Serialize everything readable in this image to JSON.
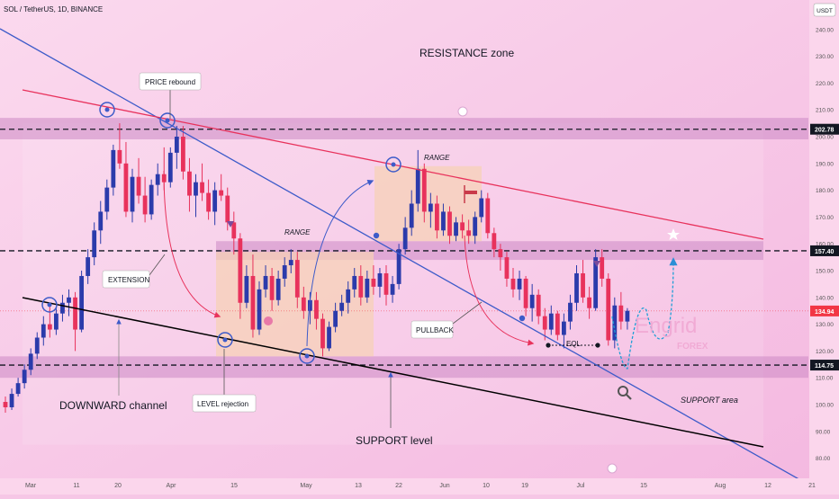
{
  "header": {
    "title": "SOL / TetherUS, 1D, BINANCE"
  },
  "y_axis": {
    "unit": "USDT",
    "ticks": [
      80,
      90,
      100,
      110,
      120,
      130,
      140,
      150,
      160,
      170,
      180,
      190,
      200,
      210,
      220,
      230,
      240
    ],
    "tick_labels": [
      "80.00",
      "90.00",
      "100.00",
      "110.00",
      "120.00",
      "130.00",
      "140.00",
      "150.00",
      "160.00",
      "170.00",
      "180.00",
      "190.00",
      "200.00",
      "210.00",
      "220.00",
      "230.00",
      "240.00"
    ],
    "price_badges": [
      {
        "value": 202.78,
        "label": "202.78",
        "color": "#131722"
      },
      {
        "value": 157.4,
        "label": "157.40",
        "color": "#131722"
      },
      {
        "value": 134.94,
        "label": "134.94",
        "color": "#f23645"
      },
      {
        "value": 114.75,
        "label": "114.75",
        "color": "#131722"
      }
    ]
  },
  "x_axis": {
    "labels": [
      "Mar",
      "11",
      "20",
      "Apr",
      "15",
      "May",
      "13",
      "22",
      "Jun",
      "10",
      "19",
      "Jul",
      "15",
      "Aug",
      "12",
      "21"
    ]
  },
  "annotations": {
    "resistance_zone": "RESISTANCE zone",
    "price_rebound": "PRICE rebound",
    "range_1": "RANGE",
    "range_2": "RANGE",
    "extension": "EXTENSION",
    "pullback": "PULLBACK",
    "eql": "EQL",
    "downward_channel": "DOWNWARD channel",
    "level_rejection": "LEVEL rejection",
    "support_level": "SUPPORT level",
    "support_area": "SUPPORT area"
  },
  "watermark": {
    "line1": "Engrid",
    "line2": "FOREX"
  },
  "colors": {
    "up": "#2b3bab",
    "down": "#e8325c",
    "zone": "#cc88c4",
    "trendline_blue": "#3d5bc9",
    "trendline_red": "#e8325c",
    "support_line": "#000000",
    "range_box": "#f7d2b4"
  },
  "chart_data": {
    "type": "candlestick",
    "symbol": "SOL / TetherUS",
    "timeframe": "1D",
    "exchange": "BINANCE",
    "unit": "USDT",
    "ylim": [
      75,
      245
    ],
    "horizontal_levels": [
      202.78,
      157.4,
      114.75
    ],
    "last_price": 134.94,
    "ohlc": [
      [
        101,
        103,
        97,
        99
      ],
      [
        99,
        106,
        98,
        104
      ],
      [
        104,
        110,
        103,
        108
      ],
      [
        108,
        115,
        106,
        113
      ],
      [
        113,
        121,
        111,
        119
      ],
      [
        119,
        127,
        117,
        125
      ],
      [
        125,
        133,
        122,
        130
      ],
      [
        130,
        137,
        125,
        128
      ],
      [
        128,
        136,
        126,
        134
      ],
      [
        134,
        141,
        131,
        138
      ],
      [
        138,
        143,
        133,
        140
      ],
      [
        140,
        142,
        120,
        128
      ],
      [
        128,
        150,
        127,
        148
      ],
      [
        148,
        158,
        145,
        155
      ],
      [
        155,
        168,
        152,
        165
      ],
      [
        165,
        176,
        160,
        172
      ],
      [
        172,
        184,
        169,
        181
      ],
      [
        181,
        197,
        178,
        195
      ],
      [
        195,
        205,
        188,
        190
      ],
      [
        190,
        198,
        170,
        172
      ],
      [
        172,
        188,
        168,
        185
      ],
      [
        185,
        192,
        175,
        178
      ],
      [
        178,
        185,
        168,
        171
      ],
      [
        171,
        184,
        169,
        182
      ],
      [
        182,
        190,
        178,
        186
      ],
      [
        186,
        196,
        180,
        183
      ],
      [
        183,
        196,
        181,
        194
      ],
      [
        194,
        204,
        188,
        200
      ],
      [
        200,
        204,
        184,
        187
      ],
      [
        187,
        192,
        172,
        178
      ],
      [
        178,
        186,
        170,
        183
      ],
      [
        183,
        190,
        176,
        179
      ],
      [
        179,
        184,
        169,
        172
      ],
      [
        172,
        183,
        167,
        180
      ],
      [
        180,
        186,
        176,
        178
      ],
      [
        178,
        181,
        165,
        168
      ],
      [
        168,
        172,
        156,
        162
      ],
      [
        162,
        164,
        132,
        138
      ],
      [
        138,
        152,
        136,
        148
      ],
      [
        148,
        156,
        125,
        128
      ],
      [
        128,
        146,
        126,
        143
      ],
      [
        143,
        152,
        140,
        148
      ],
      [
        148,
        151,
        135,
        139
      ],
      [
        139,
        150,
        137,
        147
      ],
      [
        147,
        155,
        144,
        152
      ],
      [
        152,
        158,
        149,
        154
      ],
      [
        154,
        157,
        136,
        140
      ],
      [
        140,
        144,
        132,
        135
      ],
      [
        135,
        142,
        130,
        139
      ],
      [
        139,
        142,
        128,
        132
      ],
      [
        132,
        134,
        118,
        121
      ],
      [
        121,
        131,
        120,
        129
      ],
      [
        129,
        138,
        127,
        135
      ],
      [
        135,
        141,
        133,
        138
      ],
      [
        138,
        146,
        134,
        143
      ],
      [
        143,
        151,
        140,
        148
      ],
      [
        148,
        152,
        137,
        140
      ],
      [
        140,
        150,
        138,
        147
      ],
      [
        147,
        152,
        141,
        144
      ],
      [
        144,
        151,
        140,
        149
      ],
      [
        149,
        152,
        137,
        141
      ],
      [
        141,
        148,
        138,
        145
      ],
      [
        145,
        160,
        143,
        158
      ],
      [
        158,
        170,
        156,
        166
      ],
      [
        166,
        180,
        163,
        175
      ],
      [
        175,
        195,
        172,
        188
      ],
      [
        188,
        190,
        168,
        172
      ],
      [
        172,
        179,
        166,
        175
      ],
      [
        175,
        178,
        162,
        165
      ],
      [
        165,
        175,
        163,
        172
      ],
      [
        172,
        174,
        160,
        163
      ],
      [
        163,
        170,
        161,
        168
      ],
      [
        168,
        171,
        162,
        165
      ],
      [
        165,
        169,
        160,
        163
      ],
      [
        163,
        172,
        160,
        170
      ],
      [
        170,
        180,
        168,
        177
      ],
      [
        177,
        179,
        162,
        164
      ],
      [
        164,
        166,
        155,
        158
      ],
      [
        158,
        160,
        150,
        155
      ],
      [
        155,
        157,
        144,
        147
      ],
      [
        147,
        151,
        140,
        143
      ],
      [
        143,
        150,
        139,
        147
      ],
      [
        147,
        148,
        133,
        136
      ],
      [
        136,
        145,
        131,
        141
      ],
      [
        141,
        143,
        130,
        133
      ],
      [
        133,
        136,
        124,
        128
      ],
      [
        128,
        137,
        126,
        134
      ],
      [
        134,
        135,
        124,
        126
      ],
      [
        126,
        134,
        121,
        131
      ],
      [
        131,
        141,
        128,
        138
      ],
      [
        138,
        152,
        135,
        149
      ],
      [
        149,
        154,
        138,
        140
      ],
      [
        140,
        144,
        132,
        136
      ],
      [
        136,
        158,
        135,
        155
      ],
      [
        155,
        158,
        144,
        147
      ],
      [
        147,
        149,
        122,
        124
      ],
      [
        124,
        140,
        121,
        137
      ],
      [
        137,
        142,
        128,
        131
      ],
      [
        131,
        136,
        128,
        135
      ]
    ],
    "projection_path": [
      [
        134.94
      ],
      [
        118
      ],
      [
        130
      ],
      [
        123
      ],
      [
        138
      ],
      [
        115
      ],
      [
        157
      ]
    ]
  }
}
